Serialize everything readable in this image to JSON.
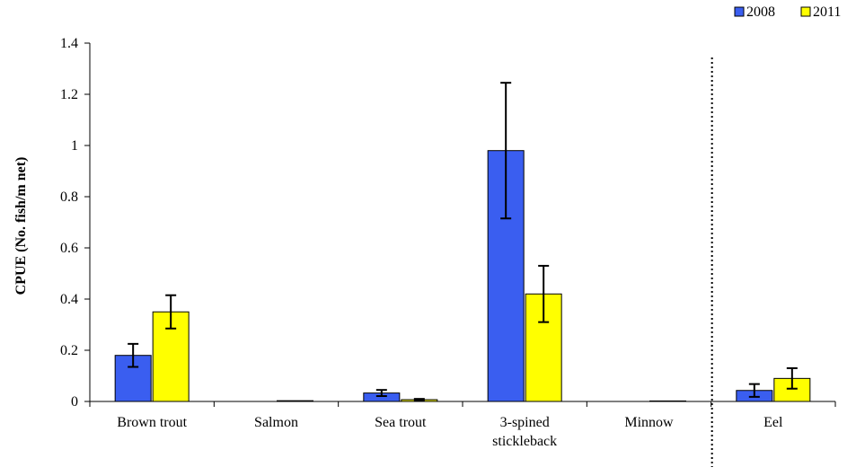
{
  "chart_data": {
    "type": "bar",
    "title": "",
    "xlabel": "",
    "ylabel": "CPUE (No. fish/m net)",
    "ylim": [
      0,
      1.4
    ],
    "yticks": [
      "0",
      "0.2",
      "0.4",
      "0.6",
      "0.8",
      "1",
      "1.2",
      "1.4"
    ],
    "grid": false,
    "legend": "top-right",
    "divider_after_category": "Minnow",
    "categories": [
      [
        "Brown trout"
      ],
      [
        "Salmon"
      ],
      [
        "Sea trout"
      ],
      [
        "3-spined",
        "stickleback"
      ],
      [
        "Minnow"
      ],
      [
        "Eel"
      ]
    ],
    "series": [
      {
        "name": "2008",
        "color": "#3a5ef0",
        "values": [
          0.18,
          0.0,
          0.033,
          0.98,
          0.0,
          0.043
        ],
        "error": [
          0.045,
          0.0,
          0.012,
          0.265,
          0.0,
          0.025
        ]
      },
      {
        "name": "2011",
        "color": "#ffff00",
        "values": [
          0.35,
          0.003,
          0.007,
          0.42,
          0.002,
          0.09
        ],
        "error": [
          0.065,
          0.0,
          0.003,
          0.11,
          0.0,
          0.04
        ]
      }
    ]
  }
}
